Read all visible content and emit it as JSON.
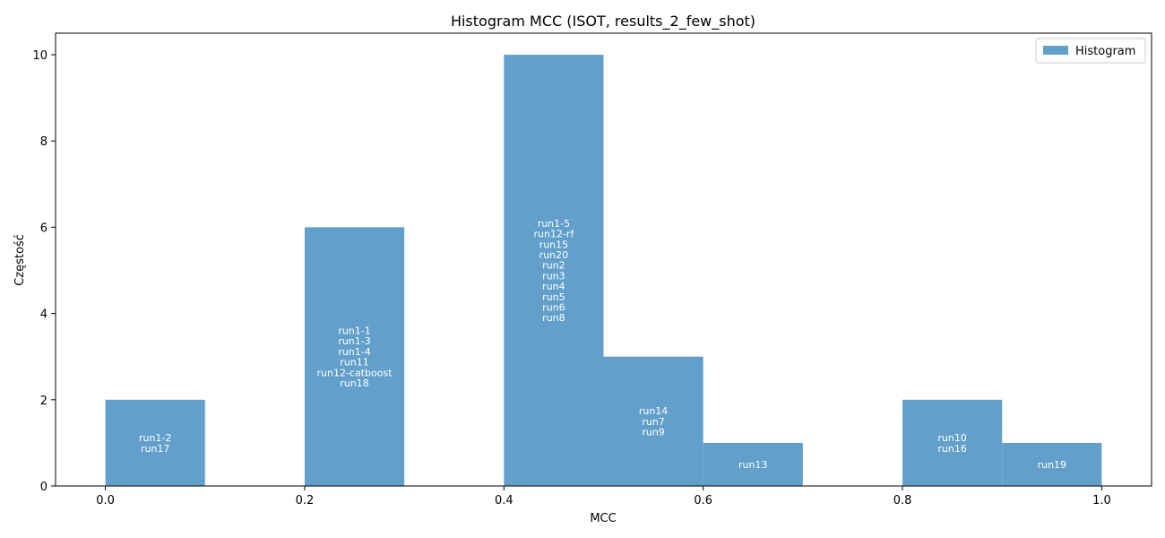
{
  "chart_data": {
    "type": "bar",
    "title": "Histogram MCC (ISOT, results_2_few_shot)",
    "xlabel": "MCC",
    "ylabel": "Częstość",
    "xlim": [
      -0.05,
      1.05
    ],
    "ylim": [
      0,
      10.5
    ],
    "xticks": [
      "0.0",
      "0.2",
      "0.4",
      "0.6",
      "0.8",
      "1.0"
    ],
    "yticks": [
      "0",
      "2",
      "4",
      "6",
      "8",
      "10"
    ],
    "bin_width": 0.1,
    "legend": {
      "position": "top-right",
      "entries": [
        "Histogram"
      ]
    },
    "bar_color": "#62a0cb",
    "bins": [
      {
        "start": 0.0,
        "count": 2,
        "labels": [
          "run1-2",
          "run17"
        ]
      },
      {
        "start": 0.1,
        "count": 0,
        "labels": []
      },
      {
        "start": 0.2,
        "count": 6,
        "labels": [
          "run1-1",
          "run1-3",
          "run1-4",
          "run11",
          "run12-catboost",
          "run18"
        ]
      },
      {
        "start": 0.3,
        "count": 0,
        "labels": []
      },
      {
        "start": 0.4,
        "count": 10,
        "labels": [
          "run1-5",
          "run12-rf",
          "run15",
          "run20",
          "run2",
          "run3",
          "run4",
          "run5",
          "run6",
          "run8"
        ]
      },
      {
        "start": 0.5,
        "count": 3,
        "labels": [
          "run14",
          "run7",
          "run9"
        ]
      },
      {
        "start": 0.6,
        "count": 1,
        "labels": [
          "run13"
        ]
      },
      {
        "start": 0.7,
        "count": 0,
        "labels": []
      },
      {
        "start": 0.8,
        "count": 2,
        "labels": [
          "run10",
          "run16"
        ]
      },
      {
        "start": 0.9,
        "count": 1,
        "labels": [
          "run19"
        ]
      }
    ]
  }
}
